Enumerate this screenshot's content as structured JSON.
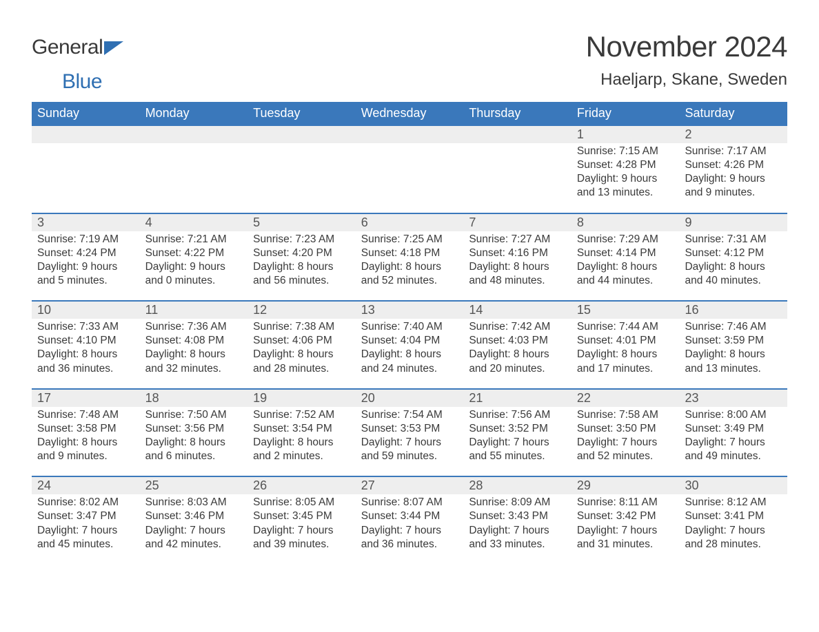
{
  "brand": {
    "part1": "General",
    "part2": "Blue",
    "brand_color": "#2f6fb2"
  },
  "title": "November 2024",
  "location": "Haeljarp, Skane, Sweden",
  "colors": {
    "header_bg": "#3a78bb",
    "header_text": "#ffffff",
    "daynum_bg": "#eeeeee",
    "text": "#3a3a3a",
    "rule": "#3a78bb"
  },
  "day_headers": [
    "Sunday",
    "Monday",
    "Tuesday",
    "Wednesday",
    "Thursday",
    "Friday",
    "Saturday"
  ],
  "weeks": [
    [
      {
        "n": "",
        "sr": "",
        "ss": "",
        "dl1": "",
        "dl2": ""
      },
      {
        "n": "",
        "sr": "",
        "ss": "",
        "dl1": "",
        "dl2": ""
      },
      {
        "n": "",
        "sr": "",
        "ss": "",
        "dl1": "",
        "dl2": ""
      },
      {
        "n": "",
        "sr": "",
        "ss": "",
        "dl1": "",
        "dl2": ""
      },
      {
        "n": "",
        "sr": "",
        "ss": "",
        "dl1": "",
        "dl2": ""
      },
      {
        "n": "1",
        "sr": "Sunrise: 7:15 AM",
        "ss": "Sunset: 4:28 PM",
        "dl1": "Daylight: 9 hours",
        "dl2": "and 13 minutes."
      },
      {
        "n": "2",
        "sr": "Sunrise: 7:17 AM",
        "ss": "Sunset: 4:26 PM",
        "dl1": "Daylight: 9 hours",
        "dl2": "and 9 minutes."
      }
    ],
    [
      {
        "n": "3",
        "sr": "Sunrise: 7:19 AM",
        "ss": "Sunset: 4:24 PM",
        "dl1": "Daylight: 9 hours",
        "dl2": "and 5 minutes."
      },
      {
        "n": "4",
        "sr": "Sunrise: 7:21 AM",
        "ss": "Sunset: 4:22 PM",
        "dl1": "Daylight: 9 hours",
        "dl2": "and 0 minutes."
      },
      {
        "n": "5",
        "sr": "Sunrise: 7:23 AM",
        "ss": "Sunset: 4:20 PM",
        "dl1": "Daylight: 8 hours",
        "dl2": "and 56 minutes."
      },
      {
        "n": "6",
        "sr": "Sunrise: 7:25 AM",
        "ss": "Sunset: 4:18 PM",
        "dl1": "Daylight: 8 hours",
        "dl2": "and 52 minutes."
      },
      {
        "n": "7",
        "sr": "Sunrise: 7:27 AM",
        "ss": "Sunset: 4:16 PM",
        "dl1": "Daylight: 8 hours",
        "dl2": "and 48 minutes."
      },
      {
        "n": "8",
        "sr": "Sunrise: 7:29 AM",
        "ss": "Sunset: 4:14 PM",
        "dl1": "Daylight: 8 hours",
        "dl2": "and 44 minutes."
      },
      {
        "n": "9",
        "sr": "Sunrise: 7:31 AM",
        "ss": "Sunset: 4:12 PM",
        "dl1": "Daylight: 8 hours",
        "dl2": "and 40 minutes."
      }
    ],
    [
      {
        "n": "10",
        "sr": "Sunrise: 7:33 AM",
        "ss": "Sunset: 4:10 PM",
        "dl1": "Daylight: 8 hours",
        "dl2": "and 36 minutes."
      },
      {
        "n": "11",
        "sr": "Sunrise: 7:36 AM",
        "ss": "Sunset: 4:08 PM",
        "dl1": "Daylight: 8 hours",
        "dl2": "and 32 minutes."
      },
      {
        "n": "12",
        "sr": "Sunrise: 7:38 AM",
        "ss": "Sunset: 4:06 PM",
        "dl1": "Daylight: 8 hours",
        "dl2": "and 28 minutes."
      },
      {
        "n": "13",
        "sr": "Sunrise: 7:40 AM",
        "ss": "Sunset: 4:04 PM",
        "dl1": "Daylight: 8 hours",
        "dl2": "and 24 minutes."
      },
      {
        "n": "14",
        "sr": "Sunrise: 7:42 AM",
        "ss": "Sunset: 4:03 PM",
        "dl1": "Daylight: 8 hours",
        "dl2": "and 20 minutes."
      },
      {
        "n": "15",
        "sr": "Sunrise: 7:44 AM",
        "ss": "Sunset: 4:01 PM",
        "dl1": "Daylight: 8 hours",
        "dl2": "and 17 minutes."
      },
      {
        "n": "16",
        "sr": "Sunrise: 7:46 AM",
        "ss": "Sunset: 3:59 PM",
        "dl1": "Daylight: 8 hours",
        "dl2": "and 13 minutes."
      }
    ],
    [
      {
        "n": "17",
        "sr": "Sunrise: 7:48 AM",
        "ss": "Sunset: 3:58 PM",
        "dl1": "Daylight: 8 hours",
        "dl2": "and 9 minutes."
      },
      {
        "n": "18",
        "sr": "Sunrise: 7:50 AM",
        "ss": "Sunset: 3:56 PM",
        "dl1": "Daylight: 8 hours",
        "dl2": "and 6 minutes."
      },
      {
        "n": "19",
        "sr": "Sunrise: 7:52 AM",
        "ss": "Sunset: 3:54 PM",
        "dl1": "Daylight: 8 hours",
        "dl2": "and 2 minutes."
      },
      {
        "n": "20",
        "sr": "Sunrise: 7:54 AM",
        "ss": "Sunset: 3:53 PM",
        "dl1": "Daylight: 7 hours",
        "dl2": "and 59 minutes."
      },
      {
        "n": "21",
        "sr": "Sunrise: 7:56 AM",
        "ss": "Sunset: 3:52 PM",
        "dl1": "Daylight: 7 hours",
        "dl2": "and 55 minutes."
      },
      {
        "n": "22",
        "sr": "Sunrise: 7:58 AM",
        "ss": "Sunset: 3:50 PM",
        "dl1": "Daylight: 7 hours",
        "dl2": "and 52 minutes."
      },
      {
        "n": "23",
        "sr": "Sunrise: 8:00 AM",
        "ss": "Sunset: 3:49 PM",
        "dl1": "Daylight: 7 hours",
        "dl2": "and 49 minutes."
      }
    ],
    [
      {
        "n": "24",
        "sr": "Sunrise: 8:02 AM",
        "ss": "Sunset: 3:47 PM",
        "dl1": "Daylight: 7 hours",
        "dl2": "and 45 minutes."
      },
      {
        "n": "25",
        "sr": "Sunrise: 8:03 AM",
        "ss": "Sunset: 3:46 PM",
        "dl1": "Daylight: 7 hours",
        "dl2": "and 42 minutes."
      },
      {
        "n": "26",
        "sr": "Sunrise: 8:05 AM",
        "ss": "Sunset: 3:45 PM",
        "dl1": "Daylight: 7 hours",
        "dl2": "and 39 minutes."
      },
      {
        "n": "27",
        "sr": "Sunrise: 8:07 AM",
        "ss": "Sunset: 3:44 PM",
        "dl1": "Daylight: 7 hours",
        "dl2": "and 36 minutes."
      },
      {
        "n": "28",
        "sr": "Sunrise: 8:09 AM",
        "ss": "Sunset: 3:43 PM",
        "dl1": "Daylight: 7 hours",
        "dl2": "and 33 minutes."
      },
      {
        "n": "29",
        "sr": "Sunrise: 8:11 AM",
        "ss": "Sunset: 3:42 PM",
        "dl1": "Daylight: 7 hours",
        "dl2": "and 31 minutes."
      },
      {
        "n": "30",
        "sr": "Sunrise: 8:12 AM",
        "ss": "Sunset: 3:41 PM",
        "dl1": "Daylight: 7 hours",
        "dl2": "and 28 minutes."
      }
    ]
  ]
}
